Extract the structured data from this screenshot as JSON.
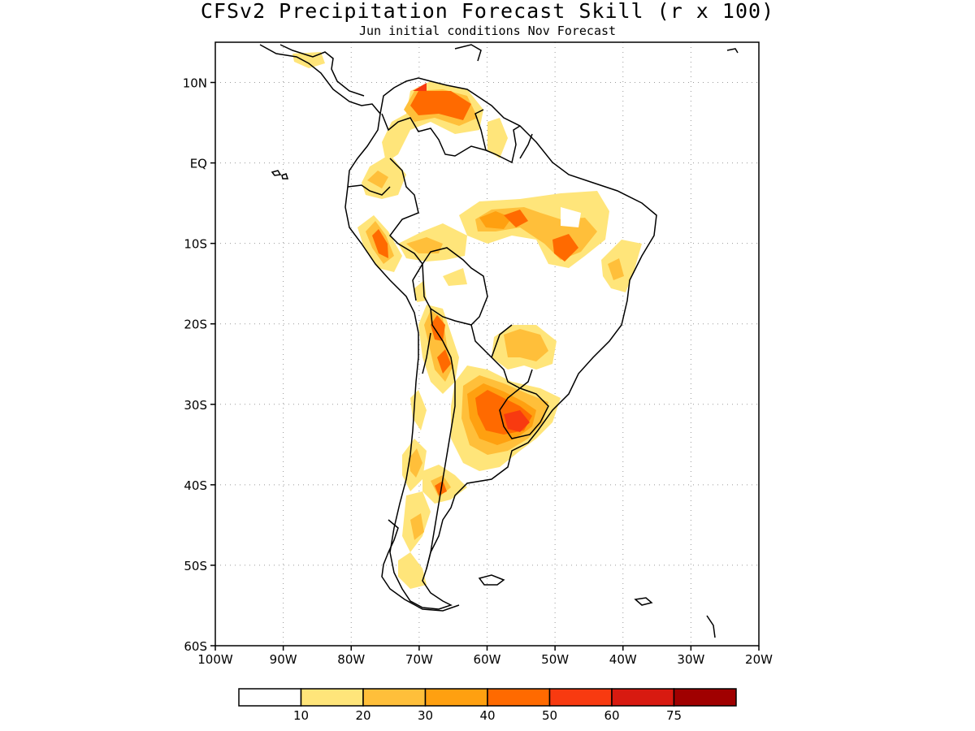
{
  "title": "CFSv2 Precipitation Forecast Skill (r x 100)",
  "subtitle": "Jun initial conditions  Nov Forecast",
  "map": {
    "lon_range": [
      -100,
      -20
    ],
    "lat_range": [
      -60,
      15
    ],
    "lon_ticks": [
      "100W",
      "90W",
      "80W",
      "70W",
      "60W",
      "50W",
      "40W",
      "30W",
      "20W"
    ],
    "lat_ticks": [
      "10N",
      "EQ",
      "10S",
      "20S",
      "30S",
      "40S",
      "50S",
      "60S"
    ],
    "grid": "dotted"
  },
  "legend": {
    "labels": [
      "10",
      "20",
      "30",
      "40",
      "50",
      "60",
      "75"
    ],
    "colors": [
      "#ffffff",
      "#ffe57a",
      "#ffbf3a",
      "#ffa010",
      "#ff6a00",
      "#f83a10",
      "#d81a10",
      "#a00000"
    ]
  }
}
